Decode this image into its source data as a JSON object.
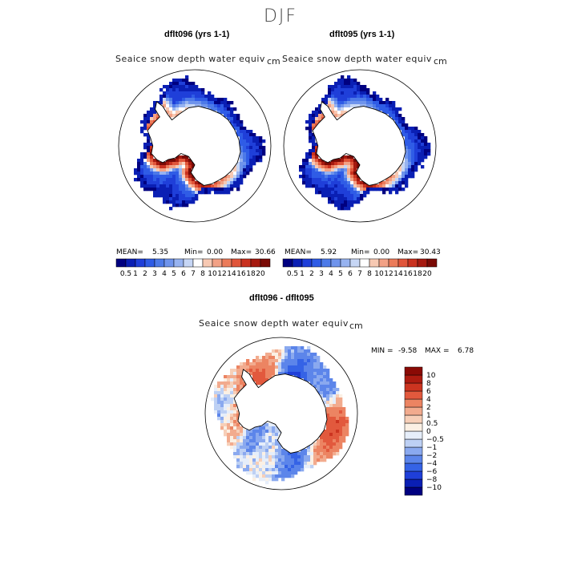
{
  "figure": {
    "title": "DJF"
  },
  "panels": [
    {
      "title": "dflt096 (yrs 1-1)",
      "variable": "Seaice snow depth water equiv",
      "unit": "cm",
      "stats": {
        "mean_label": "MEAN=",
        "mean": "5.35",
        "min_label": "Min=",
        "min": "0.00",
        "max_label": "Max=",
        "max": "30.66"
      }
    },
    {
      "title": "dflt095 (yrs 1-1)",
      "variable": "Seaice snow depth water equiv",
      "unit": "cm",
      "stats": {
        "mean_label": "MEAN=",
        "mean": "5.92",
        "min_label": "Min=",
        "min": "0.00",
        "max_label": "Max=",
        "max": "30.43"
      }
    },
    {
      "title": "dflt096 - dflt095",
      "variable": "Seaice snow depth water equiv",
      "unit": "cm",
      "stats": {
        "min_label": "MIN =",
        "min": "-9.58",
        "max_label": "MAX =",
        "max": "6.78"
      }
    }
  ],
  "chart_data": [
    {
      "type": "heatmap",
      "title": "dflt096 (yrs 1-1)",
      "variable": "Seaice snow depth water equiv",
      "unit": "cm",
      "projection": "south polar stereographic",
      "stats": {
        "mean": 5.35,
        "min": 0.0,
        "max": 30.66
      },
      "colorbar": {
        "orientation": "horizontal",
        "levels": [
          0.5,
          1,
          2,
          3,
          4,
          5,
          6,
          7,
          8,
          10,
          12,
          14,
          16,
          18,
          20
        ],
        "tick_labels": [
          "0.5",
          "1",
          "2",
          "3",
          "4",
          "5",
          "6",
          "7",
          "8",
          "10",
          "12",
          "14",
          "16",
          "18",
          "20"
        ],
        "colors": [
          "#000080",
          "#0a1fb4",
          "#1f3fd9",
          "#2f5ce6",
          "#4d7ae8",
          "#6f94ec",
          "#97b3f0",
          "#c6d6f5",
          "#ffffff",
          "#f7c9b3",
          "#f2a185",
          "#eb7b5a",
          "#e0553a",
          "#c9311f",
          "#a61a10",
          "#7a0a05"
        ]
      }
    },
    {
      "type": "heatmap",
      "title": "dflt095 (yrs 1-1)",
      "variable": "Seaice snow depth water equiv",
      "unit": "cm",
      "projection": "south polar stereographic",
      "stats": {
        "mean": 5.92,
        "min": 0.0,
        "max": 30.43
      },
      "colorbar": {
        "orientation": "horizontal",
        "levels": [
          0.5,
          1,
          2,
          3,
          4,
          5,
          6,
          7,
          8,
          10,
          12,
          14,
          16,
          18,
          20
        ],
        "tick_labels": [
          "0.5",
          "1",
          "2",
          "3",
          "4",
          "5",
          "6",
          "7",
          "8",
          "10",
          "12",
          "14",
          "16",
          "18",
          "20"
        ],
        "colors": [
          "#000080",
          "#0a1fb4",
          "#1f3fd9",
          "#2f5ce6",
          "#4d7ae8",
          "#6f94ec",
          "#97b3f0",
          "#c6d6f5",
          "#ffffff",
          "#f7c9b3",
          "#f2a185",
          "#eb7b5a",
          "#e0553a",
          "#c9311f",
          "#a61a10",
          "#7a0a05"
        ]
      }
    },
    {
      "type": "heatmap",
      "title": "dflt096 - dflt095",
      "variable": "Seaice snow depth water equiv",
      "unit": "cm",
      "projection": "south polar stereographic",
      "stats": {
        "min": -9.58,
        "max": 6.78
      },
      "colorbar": {
        "orientation": "vertical",
        "levels": [
          -10,
          -8,
          -6,
          -4,
          -2,
          -1,
          -0.5,
          0,
          0.5,
          1,
          2,
          4,
          6,
          8,
          10
        ],
        "tick_labels": [
          "−10",
          "−8",
          "−6",
          "−4",
          "−2",
          "−1",
          "−0.5",
          "0",
          "0.5",
          "1",
          "2",
          "4",
          "6",
          "8",
          "10"
        ],
        "colors": [
          "#000080",
          "#0a1fb4",
          "#1f3fd9",
          "#3563e6",
          "#5c85ea",
          "#8aa9ef",
          "#bdd0f4",
          "#e6eefa",
          "#fbf0e4",
          "#f7cfb8",
          "#f2ab8e",
          "#ec8462",
          "#e2593d",
          "#cc3420",
          "#ad1b10",
          "#8a0a05"
        ]
      }
    }
  ]
}
